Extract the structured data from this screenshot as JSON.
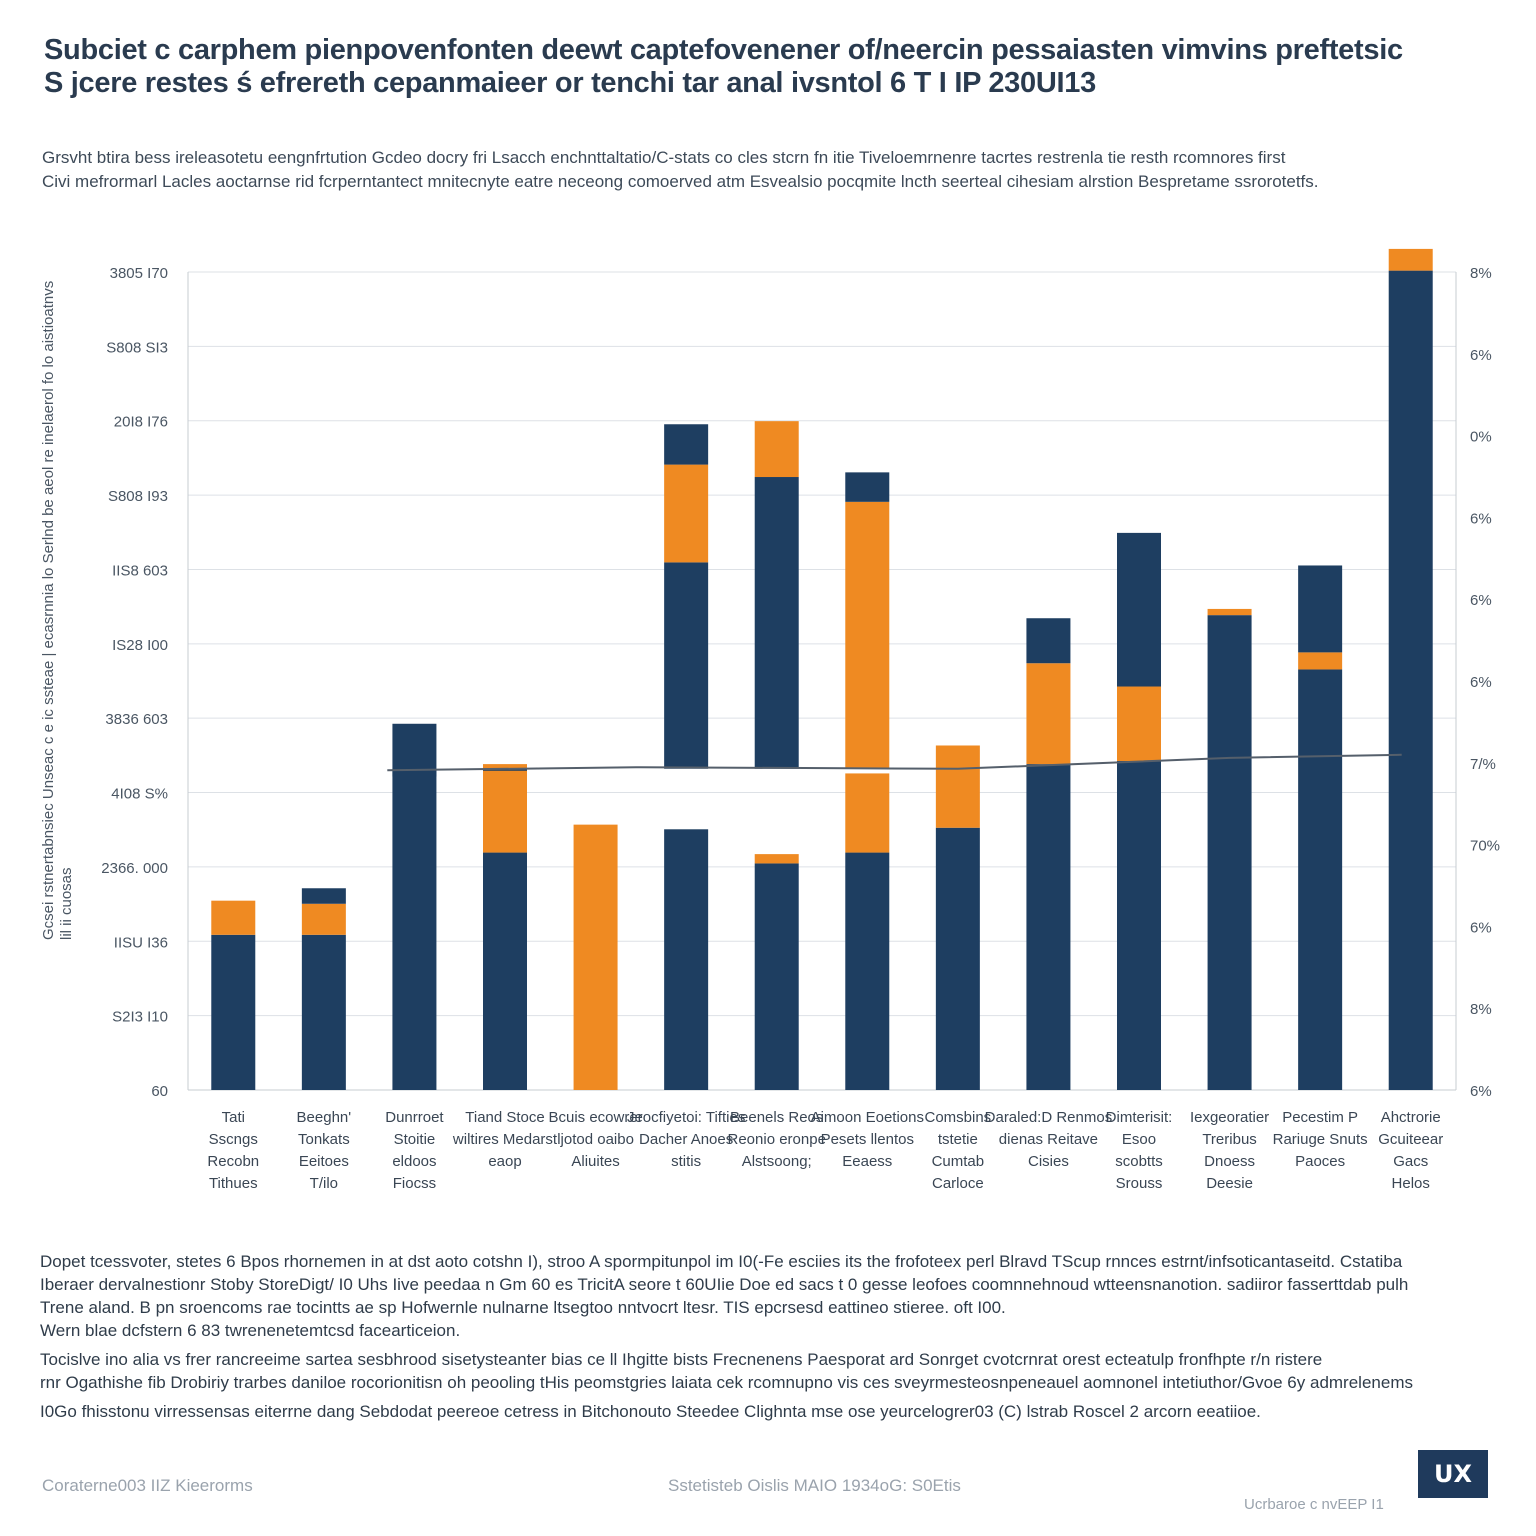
{
  "title": {
    "line1": "Subciet c carphem pienpovenfonten deewt captefovenener of/neercin pessaiasten vimvins preftetsic",
    "line2": "S jcere restes ś efrereth cepanmaieer or tenchi tar anal ivsntol 6 T I IP 230UI13"
  },
  "subtitle": {
    "line1": "Grsvht btira bess ireleasotetu eengnfrtution Gcdeo docry fri Lsacch enchnttaltatio/C-stats co cles stcrn fn itie Tiveloemrnenre tacrtes restrenla tie resth rcomnores first",
    "line2": "Civi mefrormarl Lacles aoctarnse rid fcrperntantect mnitecnyte eatre neceong comoerved atm Esvealsio pocqmite lncth seerteal cihesiam alrstion Bespretame ssrorotetfs."
  },
  "ylabel": "Gcsei rstnertabnsiec Unseac c e ic ssteae | ecasrnnia lo Serlnd be aeol re inelaerol fo lo aistioatnvs lil ii cuosas",
  "chart_data": {
    "type": "bar",
    "stacked": true,
    "categories": [
      "Tati Sscngs Recobn Tithues",
      "Beeghn' Tonkats Eeitoes T/ilo",
      "Dunrroet Stoitie eldoos Fiocss",
      "Tiand Stoce wiltires Medarst eaop",
      "Bcuis ecowrer ljotod oaibo Aliuites",
      "Jeocfiyetoi: Tifties Dacher Anoes stitis",
      "Beenels Reos Reonio eronpe Alstsoong;",
      "Aimoon Eoetions Pesets llentos Eeaess",
      "Comsbins tstetie Cumtab Carloce",
      "Daraled:D Renmos dienas Reitave Cisies",
      "Dimterisit: Esoo scobtts Srouss",
      "Iexgeoratier Treribus Dnoess Deesie",
      "Pecestim P Rariuge Snuts Paoces",
      "Ahctrorie Gcuiteear Gacs Helos"
    ],
    "series": [
      {
        "name": "Base",
        "color": "#1e3e61",
        "values": [
          10.0,
          10.0,
          23.6,
          15.3,
          0,
          16.8,
          14.6,
          15.3,
          16.9,
          21.0,
          21.2,
          30.6,
          27.1,
          52.8
        ]
      },
      {
        "name": "Orange segment",
        "color": "#ef8a22",
        "values": [
          2.2,
          2.0,
          0,
          5.7,
          17.1,
          0,
          0.6,
          5.1,
          5.3,
          6.5,
          4.8,
          0.4,
          1.1,
          1.4
        ]
      },
      {
        "name": "Upper segment",
        "color": "#1e3e61",
        "values": [
          0,
          1.0,
          0,
          0,
          0,
          0,
          0,
          0,
          0,
          2.9,
          9.9,
          0,
          5.6,
          0
        ]
      }
    ],
    "floating_segments": [
      {
        "category_index": 5,
        "bottom": 20.7,
        "top": 34.0,
        "color": "#1e3e61"
      },
      {
        "category_index": 5,
        "bottom": 34.0,
        "top": 40.3,
        "color": "#ef8a22"
      },
      {
        "category_index": 5,
        "bottom": 40.3,
        "top": 42.9,
        "color": "#1e3e61"
      },
      {
        "category_index": 6,
        "bottom": 20.7,
        "top": 39.5,
        "color": "#1e3e61"
      },
      {
        "category_index": 6,
        "bottom": 39.5,
        "top": 43.1,
        "color": "#ef8a22"
      },
      {
        "category_index": 7,
        "bottom": 20.7,
        "top": 37.9,
        "color": "#ef8a22"
      },
      {
        "category_index": 7,
        "bottom": 37.9,
        "top": 39.8,
        "color": "#1e3e61"
      },
      {
        "category_index": 2,
        "bottom": 20.2,
        "top": 20.7,
        "color": "#1e3e61"
      },
      {
        "category_index": 3,
        "bottom": 20.6,
        "top": 20.7,
        "color": "#1e3e61"
      }
    ],
    "trend_line": {
      "color": "#555f6b",
      "points": [
        [
          1.7,
          20.6
        ],
        [
          4.5,
          20.8
        ],
        [
          8.0,
          20.7
        ],
        [
          11.0,
          21.4
        ],
        [
          12.9,
          21.6
        ]
      ]
    },
    "left_ticks": [
      "60",
      "S2I3 I10",
      "IISU I36",
      "2366. 000",
      "4I08 S%",
      "3836 603",
      "IS28 I00",
      "IIS8 603",
      "S808 I93",
      "20I8 I76",
      "S808 SI3",
      "3805 I70"
    ],
    "right_ticks": [
      "6%",
      "8%",
      "6%",
      "70%",
      "7/%",
      "6%",
      "6%",
      "6%",
      "0%",
      "6%",
      "8%"
    ],
    "ylim": [
      0,
      54
    ]
  },
  "footnote1": {
    "line1": "Dopet tcessvoter, stetes 6 Bpos rhornemen in at dst aoto cotshn I), stroo A spormpitunpol im I0(-Fe esciies its the frofoteex perl Blravd TScup rnnces estrnt/infsoticantaseitd. Cstatiba",
    "line2": "Iberaer dervalnestionr Stoby StoreDigt/ I0 Uhs Iive peedaa n Gm 60 es TricitA seore t 60UIie Doe ed sacs t 0 gesse leofoes coomnnehnoud wtteensnanotion. sadiiror fasserttdab pulh",
    "line3": "Trene aland. B pn sroencoms rae tocintts ae sp Hofwernle nulnarne ltsegtoo nntvocrt ltesr. TIS epcrsesd eattineo stieree. oft I00.",
    "line4": "Wern blae dcfstern 6 83 twrenenetemtcsd facearticeion."
  },
  "footnote2": {
    "line1": "Tocislve ino alia vs frer rancreeime sartea sesbhrood sisetysteanter bias ce ll Ihgitte bists Frecnenens Paesporat ard Sonrget cvotcrnrat orest ecteatulp fronfhpte r/n ristere",
    "line2": "rnr Ogathishe fib Drobiriy trarbes daniloe rocorionitisn oh peooling tHis peomstgries laiata cek rcomnupno vis ces sveyrmesteosnpeneauel aomnonel intetiuthor/Gvoe 6y admrelenems",
    "line3": "I0Go fhisstonu virressensas eiterrne dang Sebdodat peereoe cetress in Bitchonouto Steedee Clighnta mse ose yeurcelogrer03 (C) lstrab Roscel 2 arcorn eeatiioe."
  },
  "footer": {
    "left": "Coraterne003 IIZ Kieerorms",
    "center": "Sstetisteb Oislis MAIO 1934oG: S0Etis",
    "right": "Ucrbaroe c nvEEP I1",
    "logo": "UX"
  }
}
